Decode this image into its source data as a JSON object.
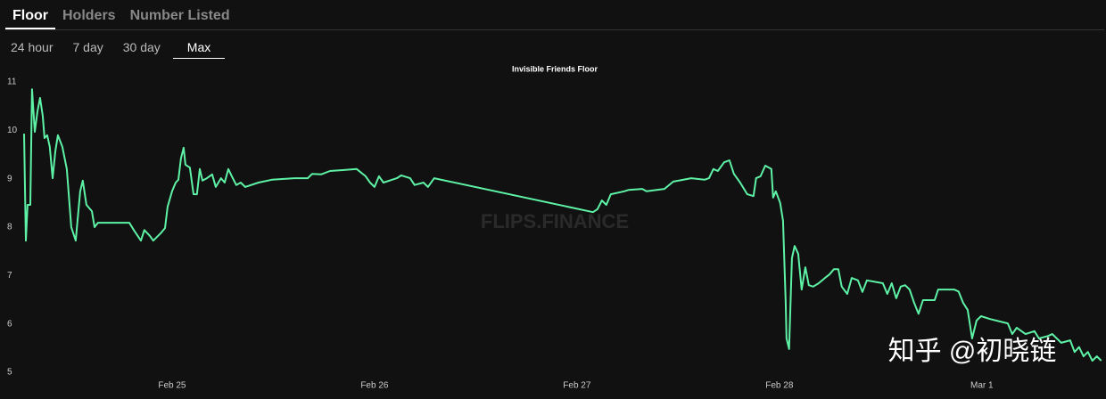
{
  "tabs": [
    "Floor",
    "Holders",
    "Number Listed"
  ],
  "active_tab": 0,
  "ranges": [
    "24 hour",
    "7 day",
    "30 day",
    "Max"
  ],
  "active_range": 3,
  "watermark": "FLIPS.FINANCE",
  "credit": "知乎 @初晓链",
  "chart_data": {
    "type": "line",
    "title": "Invisible Friends Floor",
    "color": "#5ef2a6",
    "x": [
      24.269,
      24.278,
      24.286,
      24.3,
      24.308,
      24.322,
      24.335,
      24.348,
      24.361,
      24.37,
      24.383,
      24.396,
      24.41,
      24.423,
      24.436,
      24.458,
      24.48,
      24.502,
      24.524,
      24.546,
      24.559,
      24.577,
      24.604,
      24.617,
      24.634,
      24.789,
      24.811,
      24.846,
      24.863,
      24.89,
      24.907,
      24.943,
      24.965,
      24.978,
      25.0,
      25.018,
      25.031,
      25.044,
      25.057,
      25.066,
      25.088,
      25.106,
      25.123,
      25.137,
      25.15,
      25.172,
      25.198,
      25.216,
      25.242,
      25.26,
      25.278,
      25.295,
      25.317,
      25.339,
      25.361,
      25.427,
      25.493,
      25.604,
      25.67,
      25.692,
      25.736,
      25.78,
      25.912,
      25.956,
      25.978,
      26.0,
      26.022,
      26.044,
      26.11,
      26.132,
      26.176,
      26.198,
      26.242,
      26.264,
      26.295,
      27.079,
      27.101,
      27.123,
      27.145,
      27.167,
      27.233,
      27.256,
      27.322,
      27.344,
      27.432,
      27.476,
      27.564,
      27.63,
      27.652,
      27.674,
      27.696,
      27.727,
      27.753,
      27.775,
      27.806,
      27.841,
      27.872,
      27.885,
      27.907,
      27.93,
      27.96,
      27.969,
      27.982,
      28.004,
      28.018,
      28.031,
      28.035,
      28.048,
      28.062,
      28.075,
      28.093,
      28.11,
      28.128,
      28.145,
      28.167,
      28.194,
      28.225,
      28.247,
      28.269,
      28.291,
      28.308,
      28.335,
      28.357,
      28.388,
      28.41,
      28.432,
      28.511,
      28.533,
      28.555,
      28.577,
      28.599,
      28.621,
      28.643,
      28.665,
      28.687,
      28.709,
      28.767,
      28.784,
      28.863,
      28.885,
      28.907,
      28.93,
      28.952,
      28.974,
      28.996,
      29.04,
      29.128,
      29.15,
      29.172,
      29.216,
      29.26,
      29.282,
      29.326,
      29.348,
      29.392,
      29.436,
      29.458,
      29.48,
      29.502,
      29.524,
      29.546,
      29.568,
      29.59
    ],
    "values": [
      9.93,
      7.72,
      8.46,
      8.46,
      10.85,
      9.97,
      10.39,
      10.67,
      10.3,
      9.84,
      9.9,
      9.66,
      9.01,
      9.56,
      9.9,
      9.66,
      9.2,
      8.0,
      7.72,
      8.74,
      8.96,
      8.46,
      8.33,
      8.0,
      8.09,
      8.09,
      7.94,
      7.72,
      7.94,
      7.82,
      7.72,
      7.87,
      7.98,
      8.42,
      8.74,
      8.92,
      8.98,
      9.42,
      9.64,
      9.29,
      9.23,
      8.68,
      8.68,
      9.2,
      8.96,
      9.01,
      9.09,
      8.83,
      9.01,
      8.92,
      9.2,
      9.05,
      8.87,
      8.92,
      8.83,
      8.92,
      8.98,
      9.01,
      9.01,
      9.1,
      9.09,
      9.16,
      9.2,
      9.05,
      8.92,
      8.83,
      9.05,
      8.92,
      9.01,
      9.07,
      9.01,
      8.87,
      8.92,
      8.83,
      9.01,
      8.31,
      8.37,
      8.55,
      8.46,
      8.68,
      8.74,
      8.77,
      8.79,
      8.74,
      8.79,
      8.94,
      9.01,
      8.98,
      9.01,
      9.2,
      9.16,
      9.34,
      9.38,
      9.1,
      8.92,
      8.68,
      8.64,
      9.01,
      9.05,
      9.27,
      9.2,
      8.61,
      8.74,
      8.5,
      8.13,
      6.44,
      5.7,
      5.48,
      7.36,
      7.61,
      7.45,
      6.71,
      7.17,
      6.8,
      6.77,
      6.84,
      6.95,
      7.02,
      7.13,
      7.13,
      6.77,
      6.62,
      6.95,
      6.9,
      6.66,
      6.9,
      6.84,
      6.62,
      6.84,
      6.53,
      6.77,
      6.8,
      6.71,
      6.44,
      6.21,
      6.49,
      6.49,
      6.71,
      6.71,
      6.67,
      6.44,
      6.29,
      5.7,
      6.07,
      6.16,
      6.1,
      6.01,
      5.79,
      5.92,
      5.79,
      5.85,
      5.7,
      5.75,
      5.79,
      5.61,
      5.66,
      5.42,
      5.52,
      5.33,
      5.42,
      5.24,
      5.33,
      5.24
    ],
    "xlim": [
      24.269,
      29.6
    ],
    "xticks": [
      {
        "value": 25,
        "label": "Feb 25"
      },
      {
        "value": 26,
        "label": "Feb 26"
      },
      {
        "value": 27,
        "label": "Feb 27"
      },
      {
        "value": 28,
        "label": "Feb 28"
      },
      {
        "value": 29,
        "label": "Mar 1"
      }
    ],
    "ylim": [
      5,
      11
    ],
    "yticks": [
      5,
      6,
      7,
      8,
      9,
      10,
      11
    ]
  }
}
